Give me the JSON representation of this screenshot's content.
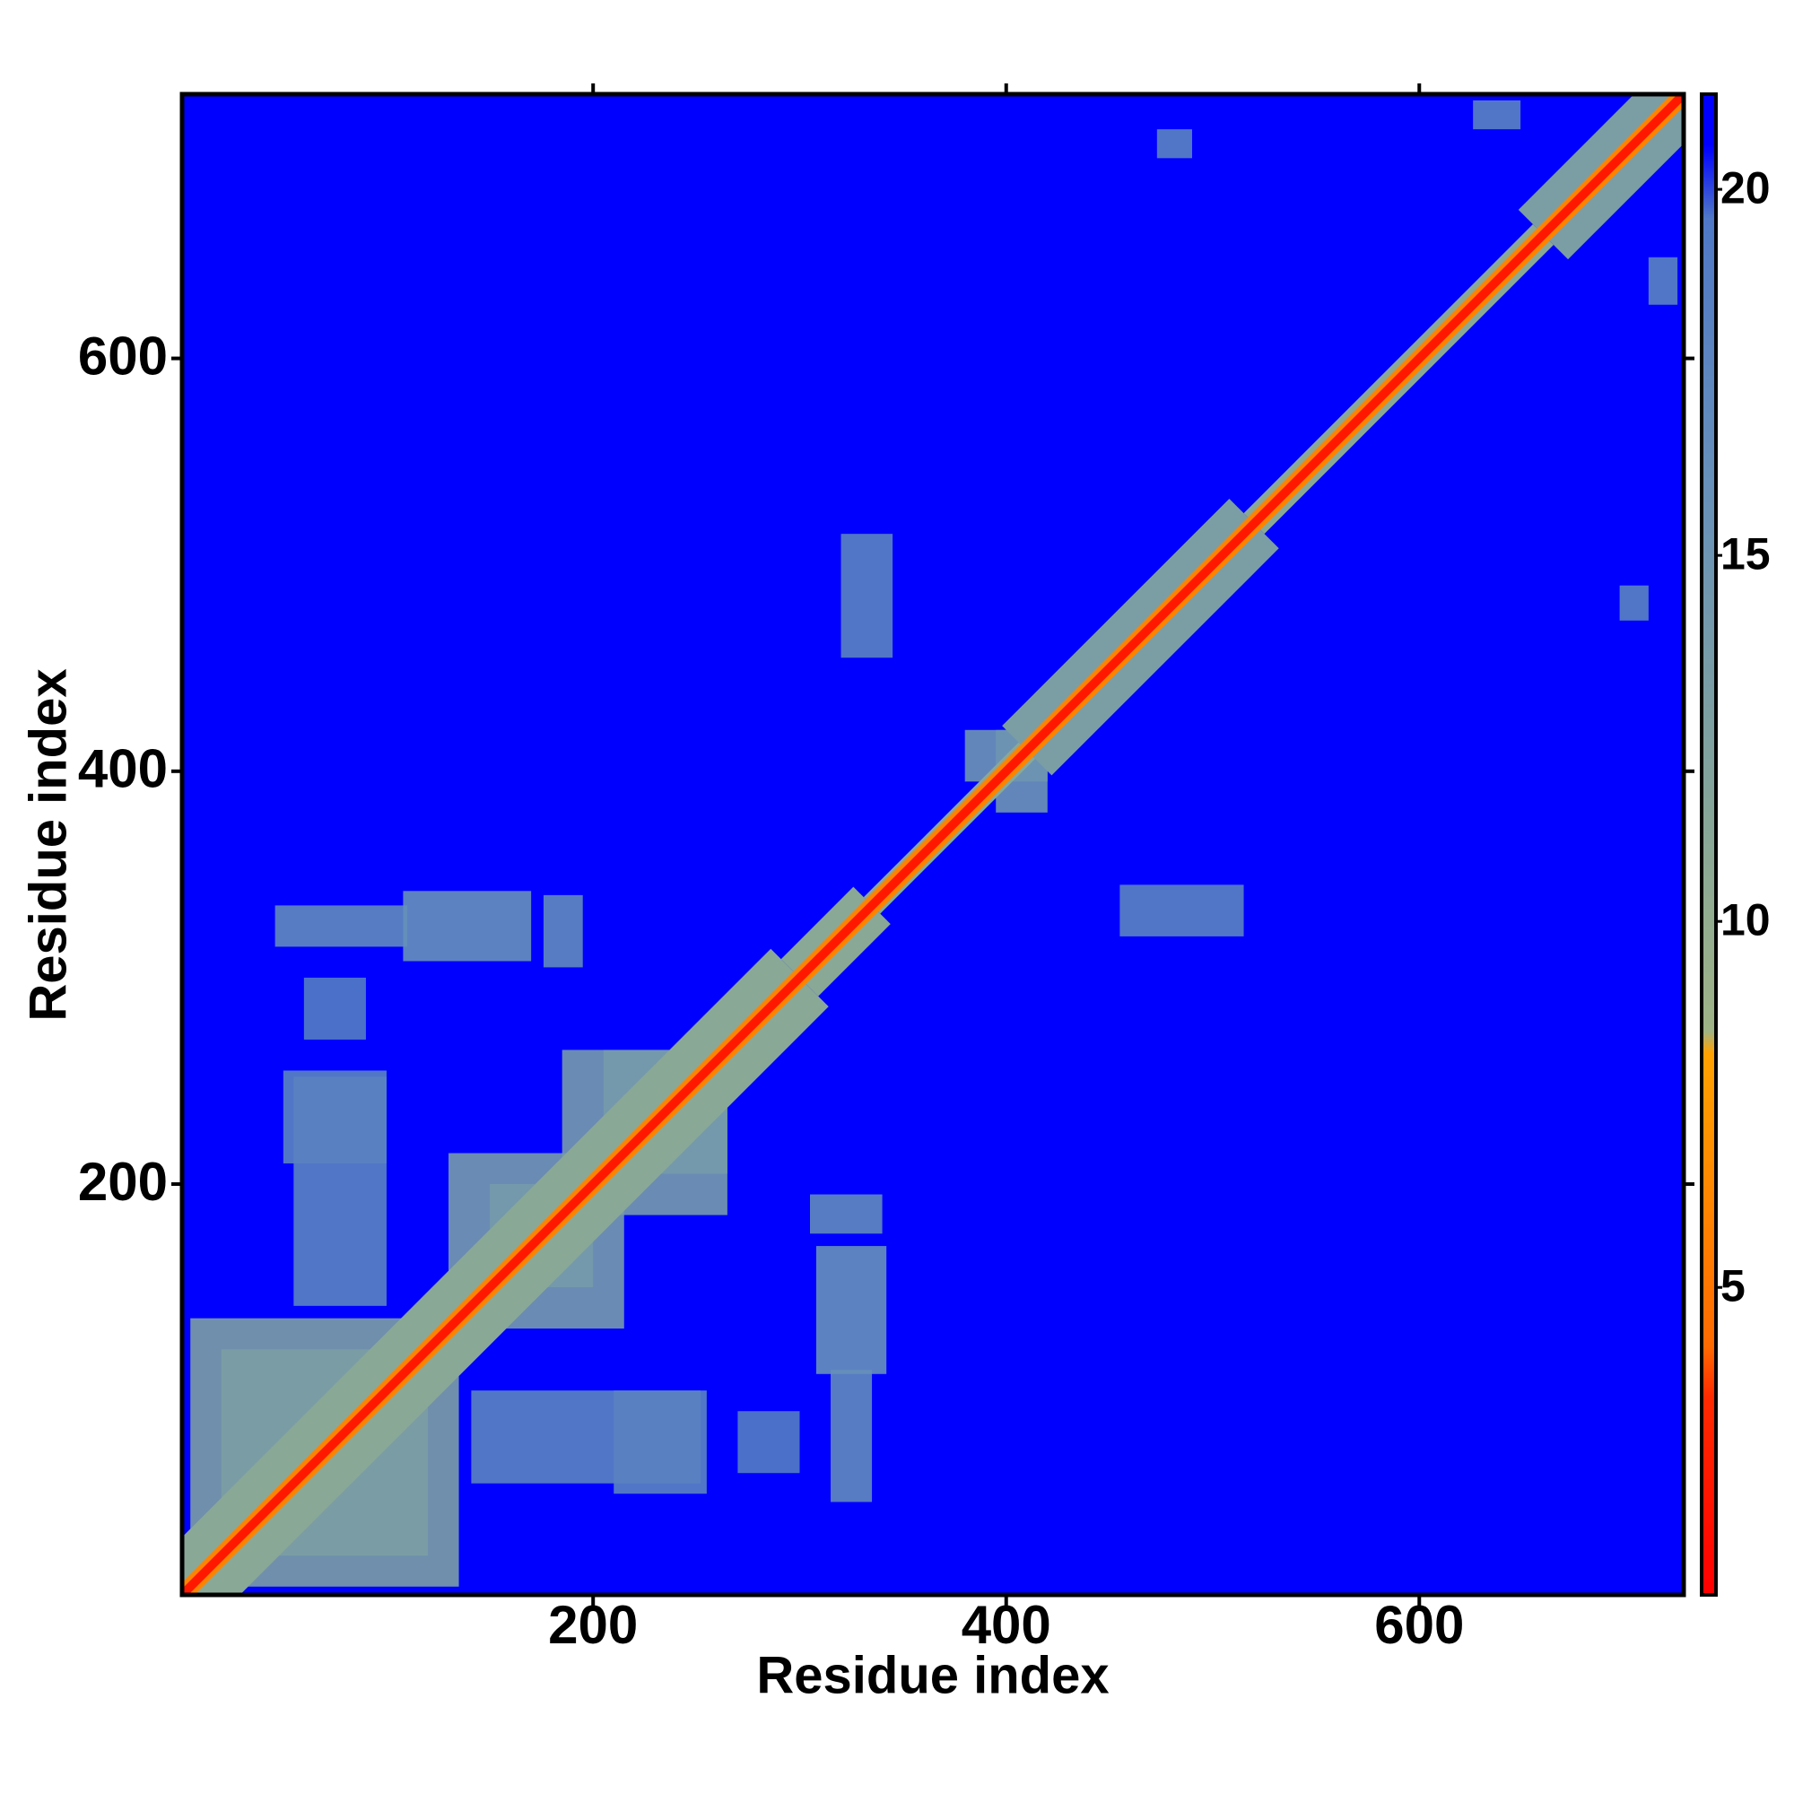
{
  "chart_data": {
    "type": "heatmap",
    "xlabel": "Residue index",
    "ylabel": "Residue index",
    "xlim": [
      1,
      728
    ],
    "ylim": [
      1,
      728
    ],
    "xticks": [
      200,
      400,
      600
    ],
    "yticks": [
      200,
      400,
      600
    ],
    "symmetric": true,
    "background": 21,
    "colorscale": [
      [
        0,
        "#ff0000"
      ],
      [
        3.5,
        "#ff2a00"
      ],
      [
        4.2,
        "#ff6a00"
      ],
      [
        8.2,
        "#ffa200"
      ],
      [
        8.5,
        "#9fb386"
      ],
      [
        12,
        "#82a39c"
      ],
      [
        16,
        "#6790ba"
      ],
      [
        19.6,
        "#4f78c6"
      ],
      [
        20.6,
        "#0000ff"
      ],
      [
        21.3,
        "#0000ff"
      ]
    ],
    "clim": [
      0.8,
      21.3
    ],
    "cticks": [
      5,
      10,
      15,
      20
    ],
    "patches": [
      {
        "x": [
          5,
          120
        ],
        "y": [
          20,
          135
        ],
        "value": 13
      },
      {
        "x": [
          130,
          200
        ],
        "y": [
          150,
          215
        ],
        "value": 14
      },
      {
        "x": [
          185,
          265
        ],
        "y": [
          205,
          265
        ],
        "value": 14
      },
      {
        "x": [
          46,
          110
        ],
        "y": [
          315,
          335
        ],
        "value": 17
      },
      {
        "x": [
          108,
          170
        ],
        "y": [
          308,
          342
        ],
        "value": 16
      },
      {
        "x": [
          176,
          195
        ],
        "y": [
          305,
          340
        ],
        "value": 17
      },
      {
        "x": [
          50,
          100
        ],
        "y": [
          210,
          255
        ],
        "value": 18
      },
      {
        "x": [
          60,
          90
        ],
        "y": [
          270,
          300
        ],
        "value": 19
      },
      {
        "x": [
          141,
          252
        ],
        "y": [
          55,
          100
        ],
        "value": 18
      },
      {
        "x": [
          320,
          345
        ],
        "y": [
          455,
          515
        ],
        "value": 18
      },
      {
        "x": [
          395,
          420
        ],
        "y": [
          380,
          420
        ],
        "value": 15
      },
      {
        "x": [
          697,
          711
        ],
        "y": [
          473,
          490
        ],
        "value": 18
      },
      {
        "x": [
          711,
          725
        ],
        "y": [
          626,
          649
        ],
        "value": 18
      }
    ],
    "bands": [
      {
        "from": 1,
        "to": 300,
        "half_width": 14,
        "value": 11
      },
      {
        "from": 300,
        "to": 335,
        "half_width": 9,
        "value": 11
      },
      {
        "from": 335,
        "to": 410,
        "half_width": 4,
        "value": 11
      },
      {
        "from": 410,
        "to": 520,
        "half_width": 12,
        "value": 13
      },
      {
        "from": 520,
        "to": 660,
        "half_width": 5,
        "value": 11
      },
      {
        "from": 660,
        "to": 728,
        "half_width": 12,
        "value": 13
      },
      {
        "from": 1,
        "to": 728,
        "half_width": 3,
        "value": 6
      },
      {
        "from": 1,
        "to": 728,
        "half_width": 1.5,
        "value": 2
      }
    ]
  }
}
